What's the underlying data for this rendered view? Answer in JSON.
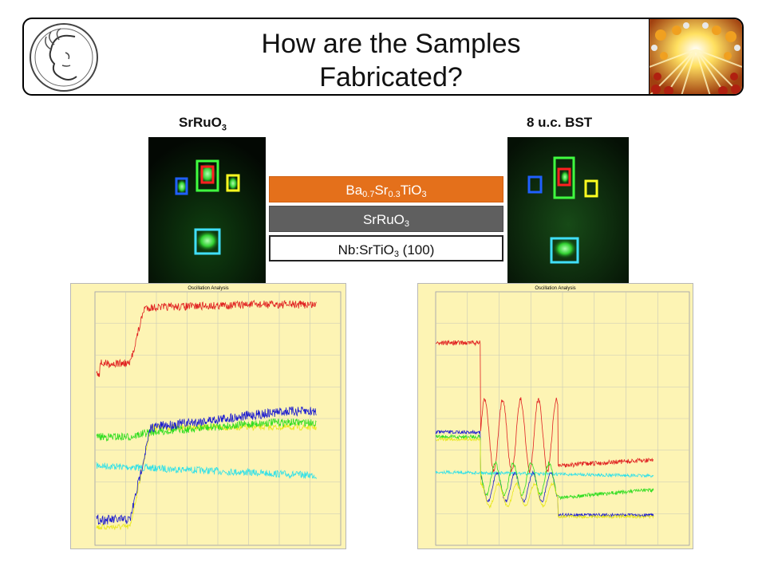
{
  "slide": {
    "title_line1": "How are the Samples",
    "title_line2": "Fabricated?"
  },
  "left_sample": {
    "label_main": "SrRuO",
    "label_sub": "3",
    "plot_title": "Oscillation Analysis"
  },
  "right_sample": {
    "label": "8 u.c. BST",
    "plot_title": "Oscillation Analysis"
  },
  "layer_stack": {
    "top": {
      "parts": [
        "Ba",
        "0.7",
        "Sr",
        "0.3",
        "TiO",
        "3"
      ],
      "color": "#e4701b"
    },
    "middle": {
      "main": "SrRuO",
      "sub": "3",
      "color": "#5f5f5f"
    },
    "bottom": {
      "main": "Nb:SrTiO",
      "sub": "3",
      "suffix": " (100)",
      "color": "#ffffff"
    }
  },
  "highlight_box_colors": {
    "red": "#ff2020",
    "green": "#40ff40",
    "blue": "#2060ff",
    "yellow": "#ffff20",
    "cyan": "#40e0ff"
  },
  "trace_colors": {
    "red": "#e02020",
    "blue": "#1a1ad0",
    "green": "#30dd20",
    "yellow": "#e8e820",
    "cyan": "#30e0e8"
  },
  "icons": {
    "left_logo": "minerva-head-icon",
    "right_logo": "crystal-lattice-icon"
  }
}
